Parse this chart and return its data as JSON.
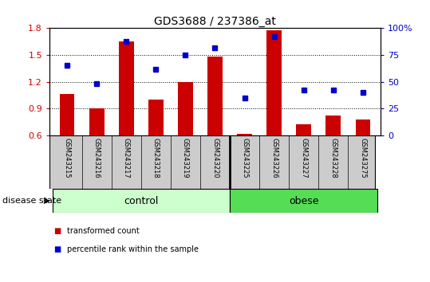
{
  "title": "GDS3688 / 237386_at",
  "samples": [
    "GSM243215",
    "GSM243216",
    "GSM243217",
    "GSM243218",
    "GSM243219",
    "GSM243220",
    "GSM243225",
    "GSM243226",
    "GSM243227",
    "GSM243228",
    "GSM243275"
  ],
  "transformed_count": [
    1.06,
    0.9,
    1.65,
    1.0,
    1.2,
    1.48,
    0.62,
    1.78,
    0.72,
    0.82,
    0.78
  ],
  "percentile_rank": [
    65,
    48,
    88,
    62,
    75,
    82,
    35,
    92,
    42,
    42,
    40
  ],
  "bar_color": "#cc0000",
  "dot_color": "#0000cc",
  "ylim_left": [
    0.6,
    1.8
  ],
  "ylim_right": [
    0,
    100
  ],
  "yticks_left": [
    0.6,
    0.9,
    1.2,
    1.5,
    1.8
  ],
  "yticks_right": [
    0,
    25,
    50,
    75,
    100
  ],
  "ytick_labels_right": [
    "0",
    "25",
    "50",
    "75",
    "100%"
  ],
  "groups": [
    {
      "label": "control",
      "indices": [
        0,
        1,
        2,
        3,
        4,
        5
      ],
      "color": "#ccffcc"
    },
    {
      "label": "obese",
      "indices": [
        6,
        7,
        8,
        9,
        10
      ],
      "color": "#55dd55"
    }
  ],
  "group_label": "disease state",
  "legend_bar_label": "transformed count",
  "legend_dot_label": "percentile rank within the sample",
  "tick_area_bg": "#cccccc",
  "bar_width": 0.5,
  "baseline": 0.6
}
